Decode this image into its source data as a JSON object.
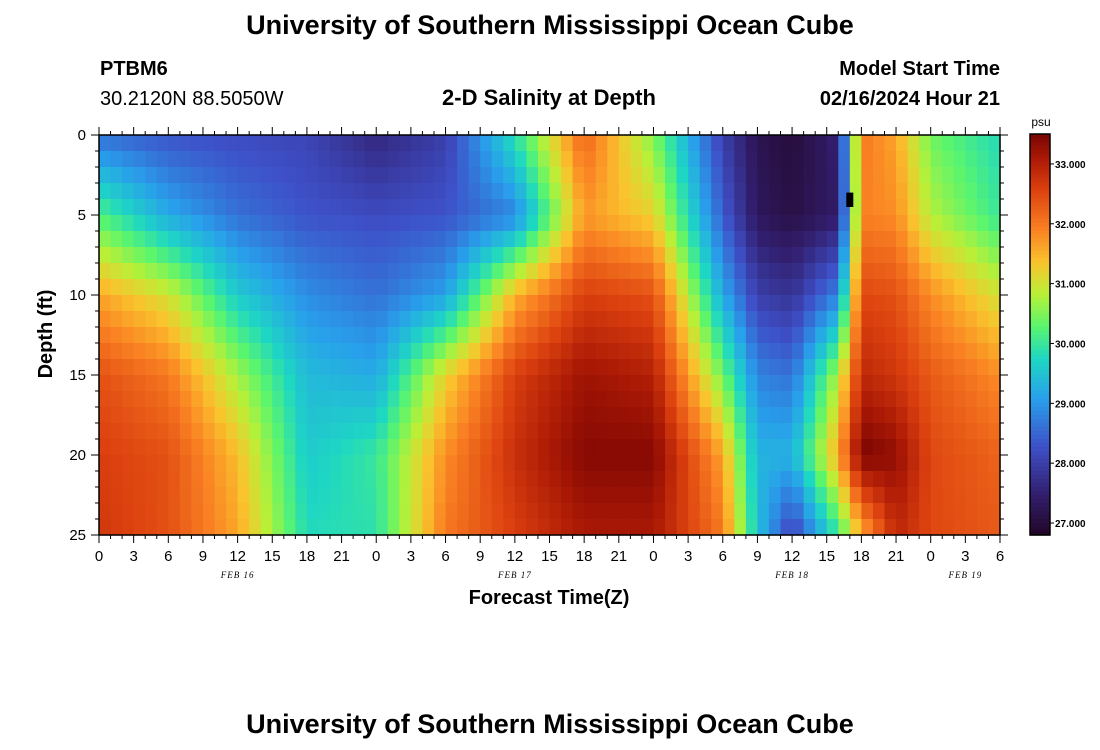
{
  "header": {
    "title": "University of Southern Mississippi Ocean Cube",
    "station": "PTBM6",
    "coords": "30.2120N  88.5050W",
    "subtitle": "2-D Salinity at Depth",
    "model_label": "Model Start Time",
    "model_time": "02/16/2024 Hour 21"
  },
  "footer": {
    "title": "University of Southern Mississippi Ocean Cube"
  },
  "chart_data": {
    "type": "heatmap",
    "title": "2-D Salinity at Depth",
    "xlabel": "Forecast Time(Z)",
    "ylabel": "Depth (ft)",
    "x_tick_labels": [
      "0",
      "3",
      "6",
      "9",
      "12",
      "15",
      "18",
      "21",
      "0",
      "3",
      "6",
      "9",
      "12",
      "15",
      "18",
      "21",
      "0",
      "3",
      "6",
      "9",
      "12",
      "15",
      "18",
      "21",
      "0",
      "3",
      "6"
    ],
    "x_tick_hours": [
      0,
      3,
      6,
      9,
      12,
      15,
      18,
      21,
      24,
      27,
      30,
      33,
      36,
      39,
      42,
      45,
      48,
      51,
      54,
      57,
      60,
      63,
      66,
      69,
      72,
      75,
      78
    ],
    "xlim_hours": [
      0,
      78
    ],
    "date_labels": [
      {
        "text": "FEB 16",
        "hour": 12
      },
      {
        "text": "FEB 17",
        "hour": 36
      },
      {
        "text": "FEB 18",
        "hour": 60
      },
      {
        "text": "FEB 19",
        "hour": 75
      }
    ],
    "y_ticks": [
      0,
      5,
      10,
      15,
      20,
      25
    ],
    "ylim": [
      0,
      25
    ],
    "colorbar": {
      "unit": "psu",
      "ticks": [
        27.0,
        28.0,
        29.0,
        30.0,
        31.0,
        32.0,
        33.0
      ],
      "tick_labels": [
        "27.000",
        "28.000",
        "29.000",
        "30.000",
        "31.000",
        "32.000",
        "33.000"
      ],
      "vmin": 26.8,
      "vmax": 33.5
    },
    "grid": {
      "hours": [
        0,
        6,
        12,
        18,
        24,
        30,
        36,
        42,
        48,
        54,
        57,
        60,
        64,
        66,
        69,
        72,
        78
      ],
      "depths": [
        0,
        5,
        10,
        15,
        20,
        25
      ],
      "values": [
        [
          28.6,
          28.3,
          28.2,
          28.1,
          27.6,
          28.0,
          29.9,
          32.2,
          30.5,
          28.0,
          27.2,
          27.0,
          27.5,
          32.0,
          31.6,
          30.4,
          29.8
        ],
        [
          30.2,
          29.2,
          28.6,
          28.3,
          28.2,
          28.3,
          28.8,
          31.7,
          31.2,
          28.4,
          27.3,
          27.1,
          27.4,
          31.9,
          31.8,
          30.8,
          30.0
        ],
        [
          31.6,
          31.0,
          29.6,
          28.9,
          28.6,
          29.1,
          31.5,
          32.6,
          32.4,
          29.2,
          28.0,
          27.8,
          28.8,
          32.5,
          32.4,
          31.8,
          31.0
        ],
        [
          32.4,
          32.0,
          30.7,
          29.4,
          29.2,
          31.2,
          32.6,
          33.2,
          33.0,
          30.4,
          28.8,
          28.6,
          30.8,
          32.9,
          32.7,
          32.3,
          31.8
        ],
        [
          32.6,
          32.4,
          31.4,
          29.6,
          30.0,
          31.8,
          32.8,
          33.4,
          33.4,
          31.6,
          29.3,
          29.3,
          31.6,
          33.5,
          33.3,
          32.5,
          32.2
        ],
        [
          32.7,
          32.4,
          31.6,
          29.8,
          29.9,
          32.0,
          32.6,
          33.1,
          33.1,
          32.0,
          29.5,
          28.0,
          30.0,
          31.5,
          32.9,
          32.5,
          32.3
        ]
      ]
    },
    "marker": {
      "hour": 65,
      "depth_from": 3.6,
      "depth_to": 4.5
    }
  }
}
